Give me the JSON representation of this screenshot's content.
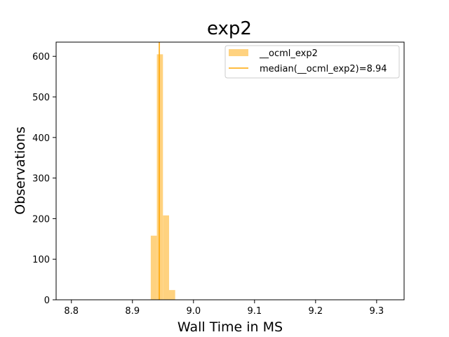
{
  "chart_data": {
    "type": "bar",
    "title": "exp2",
    "xlabel": "Wall Time in MS",
    "ylabel": "Observations",
    "xlim": [
      8.775,
      9.345
    ],
    "ylim": [
      0,
      635
    ],
    "xticks": [
      8.8,
      8.9,
      9.0,
      9.1,
      9.2,
      9.3
    ],
    "xtick_labels": [
      "8.8",
      "8.9",
      "9.0",
      "9.1",
      "9.2",
      "9.3"
    ],
    "yticks": [
      0,
      100,
      200,
      300,
      400,
      500,
      600
    ],
    "ytick_labels": [
      "0",
      "100",
      "200",
      "300",
      "400",
      "500",
      "600"
    ],
    "grid": false,
    "legend_position": "top-right",
    "series": [
      {
        "name": "__ocml_exp2",
        "kind": "histogram",
        "color": "#ffd27f",
        "bins": [
          {
            "x0": 8.93,
            "x1": 8.94,
            "count": 158
          },
          {
            "x0": 8.94,
            "x1": 8.95,
            "count": 605
          },
          {
            "x0": 8.95,
            "x1": 8.96,
            "count": 208
          },
          {
            "x0": 8.96,
            "x1": 8.97,
            "count": 24
          }
        ]
      },
      {
        "name": "median(__ocml_exp2)=8.94",
        "kind": "vline",
        "color": "#ffa500",
        "x": 8.944
      }
    ]
  }
}
